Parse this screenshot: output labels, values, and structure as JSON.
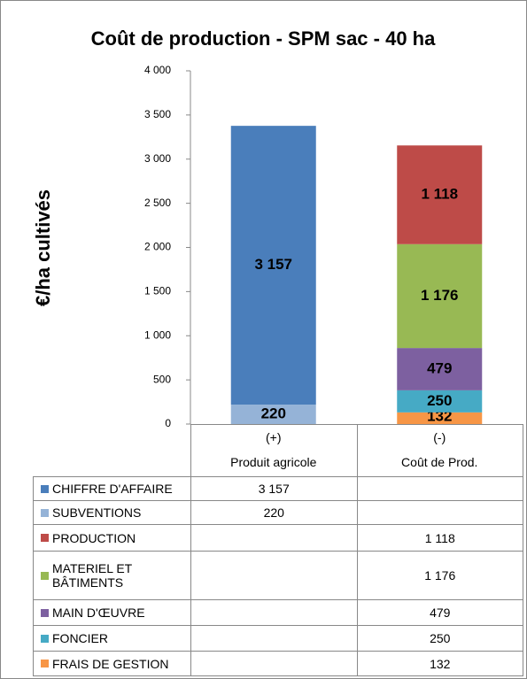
{
  "chart_data": {
    "type": "stacked_bar",
    "title": "Coût de production - SPM sac - 40 ha",
    "y_label": "€/ha cultivés",
    "categories": [
      "Produit agricole",
      "Coût de Prod."
    ],
    "category_signs": [
      "(+)",
      "(-)"
    ],
    "series": [
      {
        "name": "CHIFFRE D'AFFAIRE",
        "color": "#4a7ebb",
        "values": [
          3157,
          null
        ],
        "value_labels": [
          "3 157",
          null
        ]
      },
      {
        "name": "SUBVENTIONS",
        "color": "#95b3d7",
        "values": [
          220,
          null
        ]
      },
      {
        "name": "PRODUCTION",
        "color": "#be4b48",
        "values": [
          null,
          1118
        ],
        "value_labels": [
          null,
          "1 118"
        ]
      },
      {
        "name": "MATERIEL ET BÂTIMENTS",
        "color": "#98b954",
        "values": [
          null,
          1176
        ],
        "value_labels": [
          null,
          "1 176"
        ]
      },
      {
        "name": "MAIN D'ŒUVRE",
        "color": "#7d60a0",
        "values": [
          null,
          479
        ]
      },
      {
        "name": "FONCIER",
        "color": "#46aac5",
        "values": [
          null,
          250
        ]
      },
      {
        "name": "FRAIS DE GESTION",
        "color": "#f79646",
        "values": [
          null,
          132
        ]
      }
    ],
    "ylim": [
      0,
      4000
    ],
    "yticks": [
      0,
      500,
      {
        "value": 1000,
        "label": "1 000"
      },
      {
        "value": 1500,
        "label": "1 500"
      },
      {
        "value": 2000,
        "label": "2 000"
      },
      {
        "value": 2500,
        "label": "2 500"
      },
      {
        "value": 3000,
        "label": "3 000"
      },
      {
        "value": 3500,
        "label": "3 500"
      },
      {
        "value": 4000,
        "label": "4 000"
      }
    ],
    "grid": false
  }
}
